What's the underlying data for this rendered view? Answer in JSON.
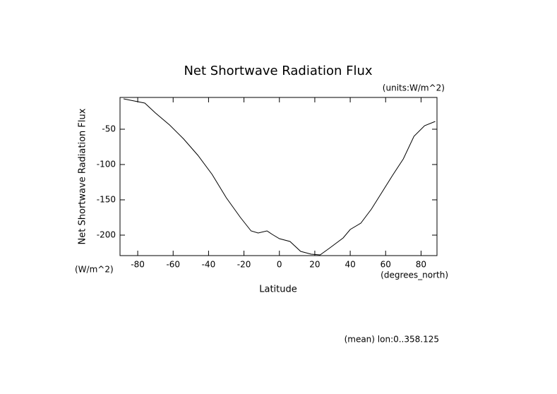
{
  "chart_data": {
    "type": "line",
    "title": "Net Shortwave Radiation Flux",
    "units": "(units:W/m^2)",
    "y_label": "Net Shortwave Radiation Flux",
    "y_units": "(W/m^2)",
    "x_label": "Latitude",
    "x_units": "(degrees_north)",
    "footnote": "(mean) lon:0..358.125",
    "x": [
      -88,
      -76,
      -70,
      -62,
      -54,
      -46,
      -38,
      -30,
      -22,
      -16,
      -12,
      -7,
      -4,
      0,
      6,
      12,
      18,
      23,
      28,
      36,
      40,
      46,
      52,
      58,
      64,
      70,
      76,
      82,
      88
    ],
    "series": [
      {
        "color": "#000000",
        "values": [
          -7,
          -13,
          -27,
          -44,
          -64,
          -87,
          -114,
          -147,
          -175,
          -194,
          -197,
          -194,
          -199,
          -205,
          -209,
          -223,
          -227,
          -228,
          -219,
          -204,
          -192,
          -183,
          -163,
          -139,
          -115,
          -92,
          -60,
          -45,
          -39
        ]
      }
    ],
    "xlim": [
      -90,
      89
    ],
    "ylim": [
      -229,
      -5
    ],
    "xticks": [
      -80,
      -60,
      -40,
      -20,
      0,
      20,
      40,
      60,
      80
    ],
    "yticks": [
      -50,
      -100,
      -150,
      -200
    ]
  }
}
